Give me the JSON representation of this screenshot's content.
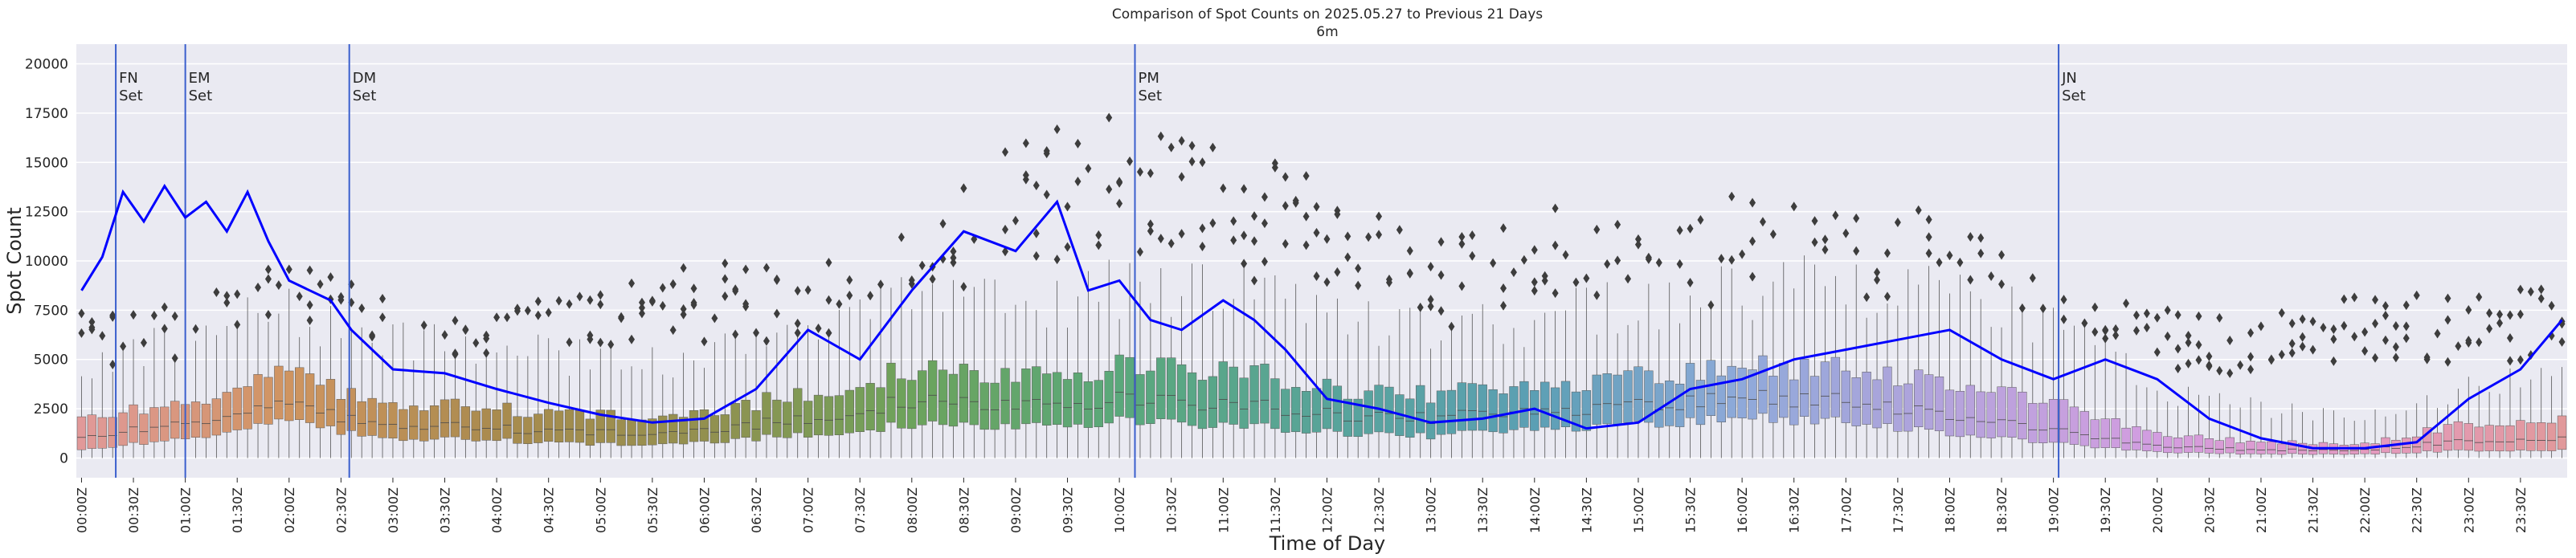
{
  "chart_data": {
    "type": "box",
    "title": "Comparison of Spot Counts on 2025.05.27 to Previous 21 Days",
    "subtitle": "6m",
    "xlabel": "Time of Day",
    "ylabel": "Spot Count",
    "ylim": [
      -1000,
      21000
    ],
    "yticks": [
      0,
      2500,
      5000,
      7500,
      10000,
      12500,
      15000,
      17500,
      20000
    ],
    "ytick_labels": [
      "0",
      "2500",
      "5000",
      "7500",
      "10000",
      "12500",
      "15000",
      "17500",
      "20000"
    ],
    "interval_minutes": 6,
    "n_boxes": 240,
    "xtick_labels": [
      "00:00Z",
      "00:30Z",
      "01:00Z",
      "01:30Z",
      "02:00Z",
      "02:30Z",
      "03:00Z",
      "03:30Z",
      "04:00Z",
      "04:30Z",
      "05:00Z",
      "05:30Z",
      "06:00Z",
      "06:30Z",
      "07:00Z",
      "07:30Z",
      "08:00Z",
      "08:30Z",
      "09:00Z",
      "09:30Z",
      "10:00Z",
      "10:30Z",
      "11:00Z",
      "11:30Z",
      "12:00Z",
      "12:30Z",
      "13:00Z",
      "13:30Z",
      "14:00Z",
      "14:30Z",
      "15:00Z",
      "15:30Z",
      "16:00Z",
      "16:30Z",
      "17:00Z",
      "17:30Z",
      "18:00Z",
      "18:30Z",
      "19:00Z",
      "19:30Z",
      "20:00Z",
      "20:30Z",
      "21:00Z",
      "21:30Z",
      "22:00Z",
      "22:30Z",
      "23:00Z",
      "23:30Z"
    ],
    "grid": true,
    "legend": "none",
    "colors": {
      "background": "#eaeaf2",
      "grid": "#ffffff",
      "current_day_line": "#0000ff",
      "event_line": "#3a5fcd",
      "outlier": "#3d3d3d",
      "whisker": "#555555"
    },
    "box_hues": [
      "#e19999",
      "#cf9460",
      "#a98b4e",
      "#93904f",
      "#6ca35c",
      "#5aa87b",
      "#58a49a",
      "#5b9fb4",
      "#8fa9da",
      "#b5a3dc",
      "#d39de0",
      "#e49ac0",
      "#e19999"
    ],
    "box_stats": {
      "hours": [
        0,
        1,
        2,
        3,
        4,
        5,
        6,
        7,
        8,
        9,
        10,
        11,
        12,
        13,
        14,
        15,
        16,
        17,
        18,
        19,
        20,
        21,
        22,
        23,
        24
      ],
      "q1": [
        400,
        1000,
        1800,
        1000,
        900,
        700,
        800,
        1200,
        1700,
        1600,
        1900,
        1700,
        1300,
        1100,
        1500,
        1700,
        2000,
        1900,
        1200,
        800,
        300,
        200,
        200,
        400,
        400
      ],
      "median": [
        1000,
        1800,
        2600,
        1700,
        1500,
        1300,
        1400,
        2000,
        2900,
        2700,
        3000,
        2800,
        2200,
        2000,
        2400,
        2700,
        3000,
        3000,
        2100,
        1500,
        600,
        400,
        400,
        900,
        1000
      ],
      "q3": [
        2000,
        2800,
        4200,
        2800,
        2500,
        2200,
        2300,
        3300,
        4500,
        4200,
        4700,
        4600,
        3500,
        3200,
        3700,
        4200,
        4500,
        4700,
        3700,
        3000,
        1200,
        800,
        700,
        1800,
        2000
      ],
      "whisker_high": [
        4500,
        6000,
        7500,
        6000,
        5500,
        5000,
        5000,
        6500,
        8000,
        8000,
        8500,
        8500,
        7000,
        6500,
        7000,
        8000,
        8500,
        9000,
        8000,
        7000,
        3500,
        2500,
        2000,
        3500,
        4500
      ],
      "outlier_high": [
        7000,
        8000,
        10500,
        7500,
        7000,
        8500,
        9500,
        9500,
        11000,
        15500,
        17500,
        15500,
        13500,
        10500,
        12500,
        12000,
        13000,
        12000,
        12000,
        8000,
        7500,
        7000,
        8000,
        8000,
        8500
      ]
    },
    "current_day": {
      "hours": [
        0,
        0.2,
        0.4,
        0.6,
        0.8,
        1.0,
        1.2,
        1.4,
        1.6,
        1.8,
        2.0,
        2.2,
        2.4,
        2.6,
        2.8,
        3.0,
        3.5,
        4.0,
        4.5,
        5.0,
        5.5,
        6.0,
        6.5,
        7.0,
        7.5,
        8.0,
        8.5,
        9.0,
        9.4,
        9.7,
        10.0,
        10.3,
        10.6,
        11.0,
        11.3,
        11.6,
        12.0,
        12.5,
        13.0,
        13.5,
        14.0,
        14.5,
        15.0,
        15.5,
        16.0,
        16.5,
        17.0,
        17.5,
        18.0,
        18.5,
        19.0,
        19.5,
        20.0,
        20.5,
        21.0,
        21.5,
        22.0,
        22.5,
        23.0,
        23.5,
        23.9
      ],
      "values": [
        8500,
        10200,
        13500,
        12000,
        13800,
        12200,
        13000,
        11500,
        13500,
        11000,
        9000,
        8500,
        8000,
        6500,
        5500,
        4500,
        4300,
        3500,
        2800,
        2200,
        1800,
        2000,
        3500,
        6500,
        5000,
        8500,
        11500,
        10500,
        13000,
        8500,
        9000,
        7000,
        6500,
        8000,
        7000,
        5500,
        3000,
        2500,
        1800,
        2000,
        2500,
        1500,
        1800,
        3500,
        4000,
        5000,
        5500,
        6000,
        6500,
        5000,
        4000,
        5000,
        4000,
        2000,
        1000,
        500,
        500,
        800,
        3000,
        4500,
        7000
      ]
    },
    "events": [
      {
        "label": "FN\nSet",
        "hour": 0.33
      },
      {
        "label": "EM\nSet",
        "hour": 1.0
      },
      {
        "label": "DM\nSet",
        "hour": 2.58
      },
      {
        "label": "PM\nSet",
        "hour": 10.15
      },
      {
        "label": "JN\nSet",
        "hour": 19.05
      }
    ]
  }
}
